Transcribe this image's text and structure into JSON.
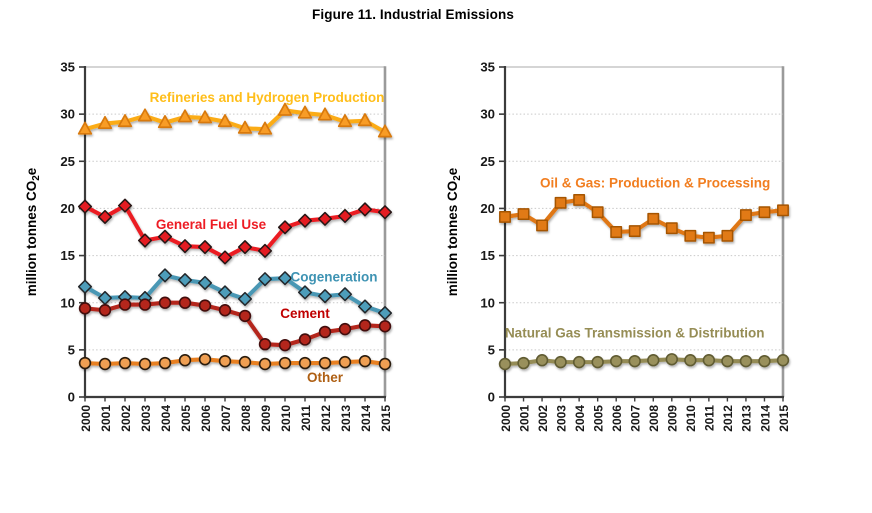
{
  "title": "Figure 11. Industrial Emissions",
  "chart_data": [
    {
      "type": "line",
      "position": "left",
      "title": "",
      "xlabel": "",
      "ylabel": {
        "pre": "million tonnes CO",
        "sub": "2",
        "post": "e"
      },
      "ylim": [
        0,
        35
      ],
      "yticks": [
        0,
        5,
        10,
        15,
        20,
        25,
        30,
        35
      ],
      "grid": true,
      "x_label_rotation": -90,
      "legend_position": "inline-labels",
      "x": [
        "2000",
        "2001",
        "2002",
        "2003",
        "2004",
        "2005",
        "2006",
        "2007",
        "2008",
        "2009",
        "2010",
        "2011",
        "2012",
        "2013",
        "2014",
        "2015"
      ],
      "series": [
        {
          "name": "Refineries and Hydrogen Production",
          "marker": "triangle",
          "color": "#FBAC18",
          "marker_fill": "#F89C25",
          "marker_stroke": "#D8790D",
          "label_color": "#FFBE1A",
          "label_anchor": {
            "x": 2009.1,
            "y": 31.8
          },
          "values": [
            28.4,
            29.0,
            29.2,
            29.8,
            29.1,
            29.7,
            29.6,
            29.2,
            28.5,
            28.4,
            30.4,
            30.1,
            29.9,
            29.2,
            29.3,
            28.1
          ]
        },
        {
          "name": "General Fuel Use",
          "marker": "diamond",
          "color": "#EB1C24",
          "marker_fill": "#E41B23",
          "marker_stroke": "#251312",
          "label_color": "#ED1C24",
          "label_anchor": {
            "x": 2006.3,
            "y": 18.3
          },
          "values": [
            20.2,
            19.1,
            20.3,
            16.6,
            17.0,
            16.0,
            15.9,
            14.8,
            15.9,
            15.5,
            18.0,
            18.7,
            18.9,
            19.2,
            19.9,
            19.6
          ]
        },
        {
          "name": "Cogeneration",
          "marker": "diamond",
          "color": "#4897B4",
          "marker_fill": "#4E9DBA",
          "marker_stroke": "#20262A",
          "label_color": "#3E93B3",
          "label_anchor": {
            "x": 2012.45,
            "y": 12.75
          },
          "values": [
            11.7,
            10.5,
            10.6,
            10.5,
            12.9,
            12.4,
            12.1,
            11.1,
            10.4,
            12.5,
            12.6,
            11.1,
            10.7,
            10.9,
            9.6,
            8.9
          ]
        },
        {
          "name": "Cement",
          "marker": "circle",
          "color": "#B4251D",
          "marker_fill": "#B4251D",
          "marker_stroke": "#43110C",
          "label_color": "#C00000",
          "label_anchor": {
            "x": 2011.0,
            "y": 8.9
          },
          "values": [
            9.4,
            9.2,
            9.8,
            9.8,
            10.0,
            10.0,
            9.7,
            9.2,
            8.6,
            5.6,
            5.5,
            6.1,
            6.9,
            7.2,
            7.6,
            7.5
          ]
        },
        {
          "name": "Other",
          "marker": "circle",
          "color": "#E88020",
          "marker_fill": "#EF9F53",
          "marker_stroke": "#2A1C10",
          "label_color": "#AE5F13",
          "label_anchor": {
            "x": 2012.0,
            "y": 2.1
          },
          "values": [
            3.6,
            3.5,
            3.6,
            3.5,
            3.6,
            3.9,
            4.0,
            3.8,
            3.7,
            3.5,
            3.6,
            3.6,
            3.6,
            3.7,
            3.8,
            3.5
          ]
        }
      ]
    },
    {
      "type": "line",
      "position": "right",
      "title": "",
      "xlabel": "",
      "ylabel": {
        "pre": "million tonnes CO",
        "sub": "2",
        "post": "e"
      },
      "ylim": [
        0,
        35
      ],
      "yticks": [
        0,
        5,
        10,
        15,
        20,
        25,
        30,
        35
      ],
      "grid": true,
      "x_label_rotation": -90,
      "legend_position": "inline-labels",
      "x": [
        "2000",
        "2001",
        "2002",
        "2003",
        "2004",
        "2005",
        "2006",
        "2007",
        "2008",
        "2009",
        "2010",
        "2011",
        "2012",
        "2013",
        "2014",
        "2015"
      ],
      "series": [
        {
          "name": "Oil & Gas: Production & Processing",
          "marker": "square",
          "color": "#DF7713",
          "marker_fill": "#E17A17",
          "marker_stroke": "#A55406",
          "label_color": "#F17E20",
          "label_anchor": {
            "x": 2008.1,
            "y": 22.7
          },
          "values": [
            19.1,
            19.4,
            18.2,
            20.6,
            20.9,
            19.6,
            17.5,
            17.6,
            18.9,
            17.9,
            17.1,
            16.9,
            17.1,
            19.3,
            19.6,
            19.8
          ]
        },
        {
          "name": "Natural Gas Transmission & Distribution",
          "marker": "circle",
          "color": "#948B54",
          "marker_fill": "#99905C",
          "marker_stroke": "#615B33",
          "label_color": "#968D55",
          "label_anchor": {
            "x": 2007.0,
            "y": 6.8
          },
          "values": [
            3.5,
            3.6,
            3.9,
            3.7,
            3.7,
            3.7,
            3.8,
            3.8,
            3.9,
            4.0,
            3.9,
            3.9,
            3.8,
            3.8,
            3.8,
            3.9
          ]
        }
      ]
    }
  ]
}
